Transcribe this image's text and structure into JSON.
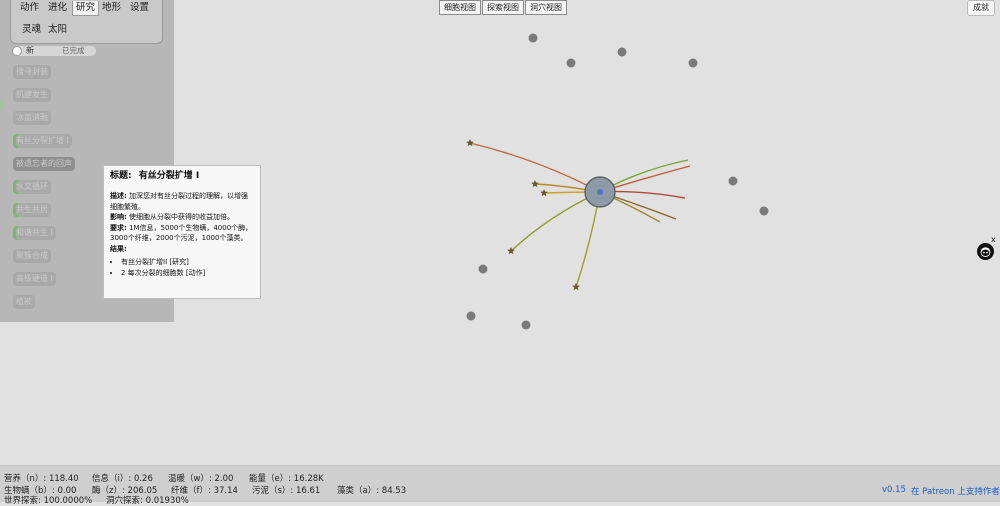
{
  "menu": {
    "tabs": [
      "动作",
      "进化",
      "研究",
      "地形",
      "设置"
    ],
    "tabs_row2": [
      "灵魂",
      "太阳"
    ],
    "active_tab": "研究"
  },
  "toggle": {
    "new_label": "新",
    "done_label": "已完成"
  },
  "research_list": [
    {
      "label": "搜寻封装",
      "state": "locked"
    },
    {
      "label": "肌腱发生",
      "state": "locked"
    },
    {
      "label": "冰盖消融",
      "state": "locked"
    },
    {
      "label": "有丝分裂扩增 I",
      "state": "in-progress"
    },
    {
      "label": "被遗忘者的回声",
      "state": "hovered"
    },
    {
      "label": "水文循环",
      "state": "in-progress"
    },
    {
      "label": "共生共居",
      "state": "in-progress"
    },
    {
      "label": "和谐共生 I",
      "state": "in-progress"
    },
    {
      "label": "聚簇合成",
      "state": "locked"
    },
    {
      "label": "高级硬造 I",
      "state": "locked"
    },
    {
      "label": "植被",
      "state": "locked"
    }
  ],
  "views": {
    "cell": "细胞视图",
    "explore": "探索视图",
    "cave": "洞穴视图"
  },
  "achievements_label": "成就",
  "tooltip": {
    "title_label": "标题:",
    "title": "有丝分裂扩增 I",
    "desc_label": "描述:",
    "desc": "加深您对有丝分裂过程的理解，以增强细胞繁殖。",
    "effect_label": "影响:",
    "effect": "使细胞从分裂中获得的收益加倍。",
    "req_label": "要求:",
    "req": "1M信息，5000个生物螨，4000个酶，3000个纤维，2000个污泥，1000个藻类。",
    "results_label": "结果:",
    "results": [
      "有丝分裂扩增II [研究]",
      "2 每次分裂的细胞数 [动作]"
    ]
  },
  "stats": {
    "row1": [
      {
        "label": "营养（n）:",
        "value": "118.40"
      },
      {
        "label": "信息（i）:",
        "value": "0.26"
      },
      {
        "label": "温暖（w）:",
        "value": "2.00"
      },
      {
        "label": "能量（e）:",
        "value": "16.28K"
      }
    ],
    "row2": [
      {
        "label": "生物螨（b）:",
        "value": "0.00"
      },
      {
        "label": "酶（z）:",
        "value": "206.05"
      },
      {
        "label": "纤维（f）:",
        "value": "37.14"
      },
      {
        "label": "污泥（s）:",
        "value": "16.61"
      },
      {
        "label": "藻类（a）:",
        "value": "84.53"
      }
    ],
    "row3": [
      {
        "label": "世界探索:",
        "value": "100.0000%"
      },
      {
        "label": "洞穴探索:",
        "value": "0.01930%"
      }
    ]
  },
  "version": "v0.15",
  "patreon_label": "在 Patreon 上支持作者",
  "github_close": "x",
  "colors": {
    "background": "#e1e1e1",
    "panel": "#b7b7b7",
    "nutrient_dot": "#7a7a7a",
    "cell": "#8f9aa8",
    "link": "#1a5cc7"
  }
}
